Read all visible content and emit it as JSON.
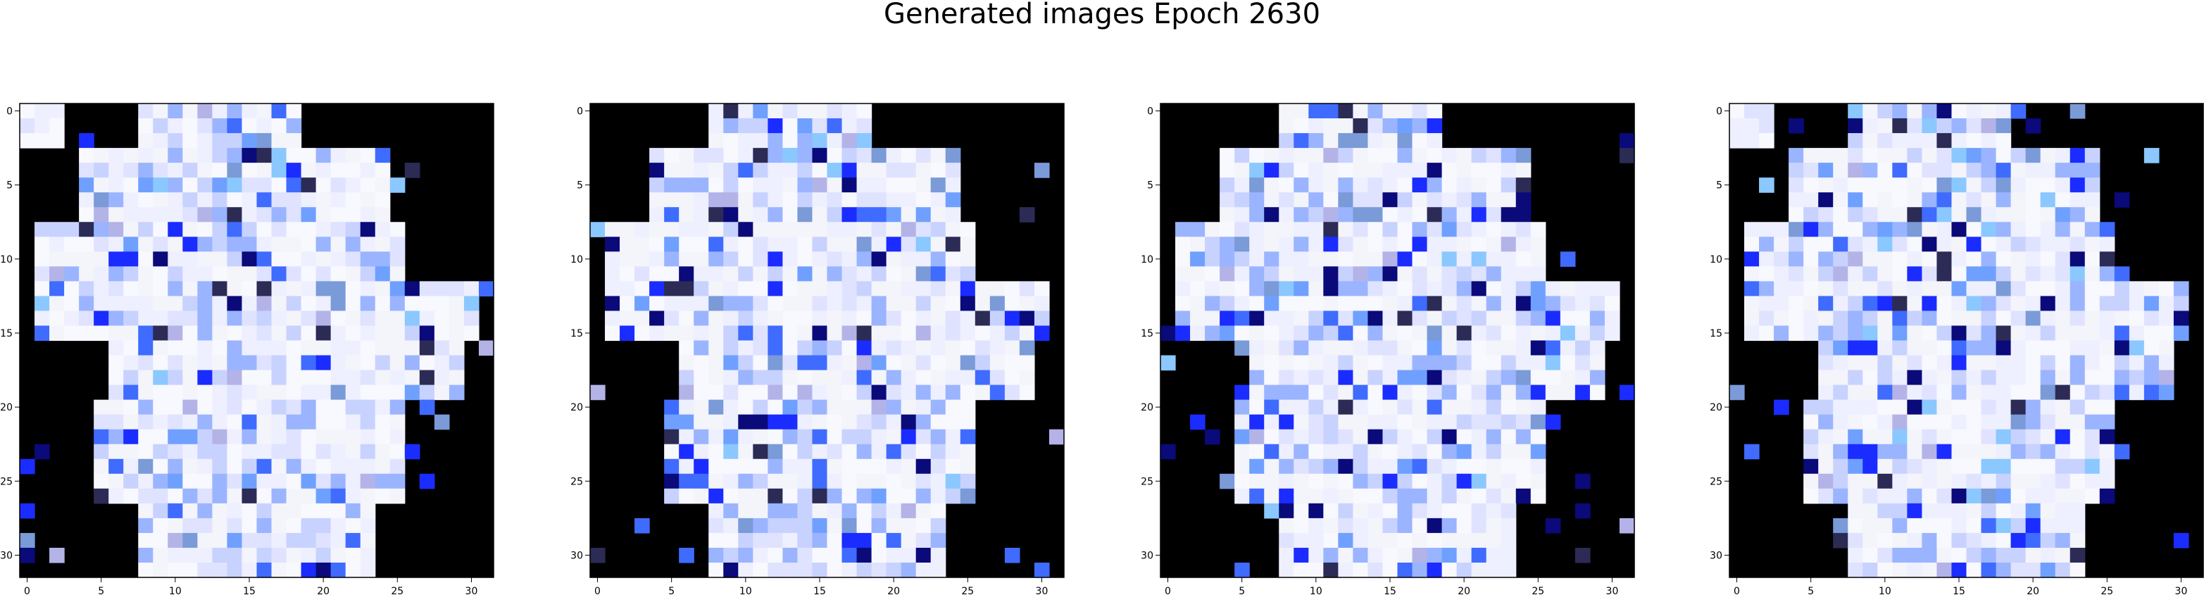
{
  "figure": {
    "title": "Generated images Epoch 2630"
  },
  "chart_data": [
    {
      "type": "heatmap",
      "panel": "image-1",
      "grid": [
        32,
        32
      ],
      "xlim": [
        0,
        31
      ],
      "ylim": [
        31,
        0
      ],
      "xticks": [
        "0",
        "5",
        "10",
        "15",
        "20",
        "25",
        "30"
      ],
      "yticks": [
        "0",
        "5",
        "10",
        "15",
        "20",
        "25",
        "30"
      ],
      "grid_on": false,
      "colormap": "rgb image, white/blue on black"
    },
    {
      "type": "heatmap",
      "panel": "image-2",
      "grid": [
        32,
        32
      ],
      "xlim": [
        0,
        31
      ],
      "ylim": [
        31,
        0
      ],
      "xticks": [
        "0",
        "5",
        "10",
        "15",
        "20",
        "25",
        "30"
      ],
      "yticks": [
        "0",
        "5",
        "10",
        "15",
        "20",
        "25",
        "30"
      ],
      "grid_on": false,
      "colormap": "rgb image, white/blue on black"
    },
    {
      "type": "heatmap",
      "panel": "image-3",
      "grid": [
        32,
        32
      ],
      "xlim": [
        0,
        31
      ],
      "ylim": [
        31,
        0
      ],
      "xticks": [
        "0",
        "5",
        "10",
        "15",
        "20",
        "25",
        "30"
      ],
      "yticks": [
        "0",
        "5",
        "10",
        "15",
        "20",
        "25",
        "30"
      ],
      "grid_on": false,
      "colormap": "rgb image, white/blue on black"
    },
    {
      "type": "heatmap",
      "panel": "image-4",
      "grid": [
        32,
        32
      ],
      "xlim": [
        0,
        31
      ],
      "ylim": [
        31,
        0
      ],
      "xticks": [
        "0",
        "5",
        "10",
        "15",
        "20",
        "25",
        "30"
      ],
      "yticks": [
        "0",
        "5",
        "10",
        "15",
        "20",
        "25",
        "30"
      ],
      "grid_on": false,
      "colormap": "rgb image, white/blue on black"
    }
  ]
}
